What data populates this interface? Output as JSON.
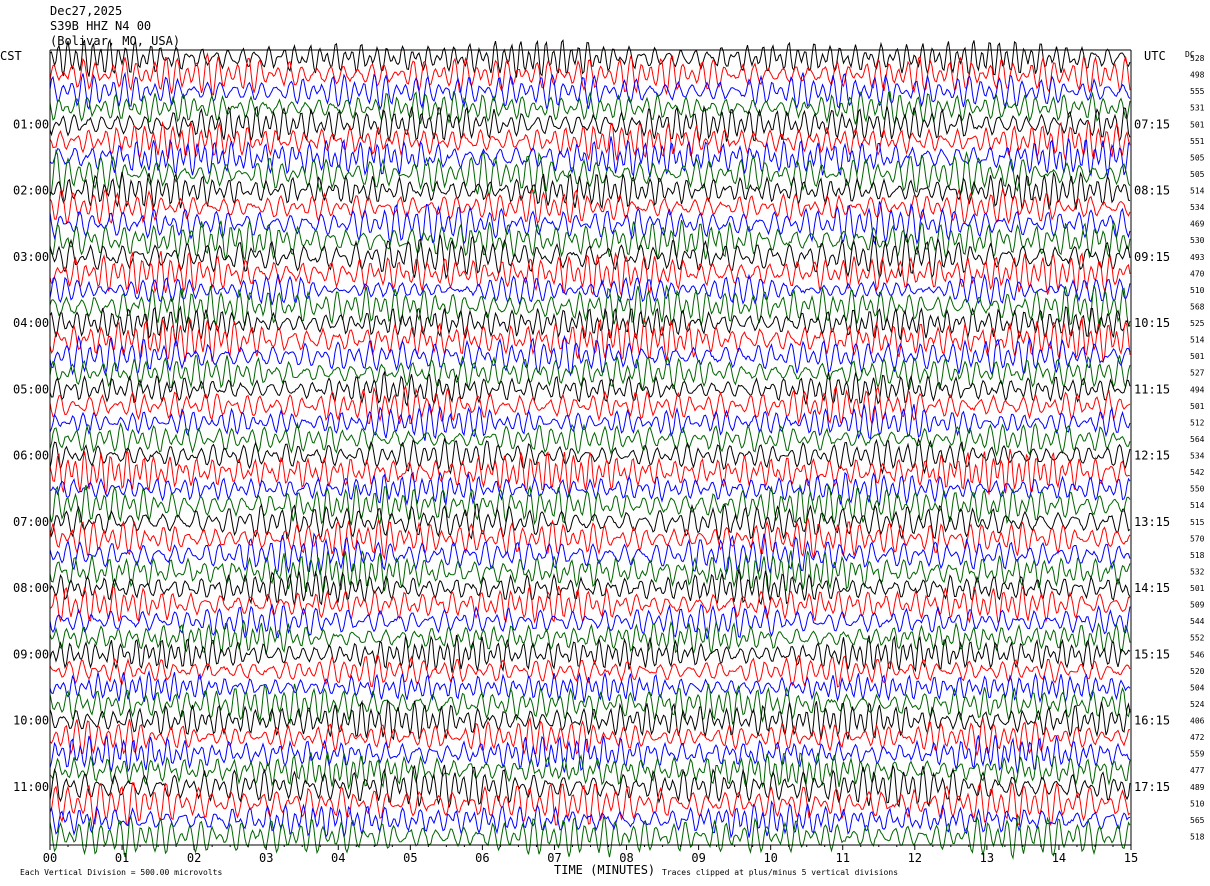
{
  "header": {
    "date": "Dec27,2025",
    "station": "S39B HHZ N4 00",
    "location": "(Bolivar, MO, USA)"
  },
  "axis_labels": {
    "left_timezone": "CST",
    "right_timezone": "UTC",
    "dc_label": "DC",
    "x_title": "TIME (MINUTES)"
  },
  "footer": {
    "scale_note": "Each Vertical Division =  500.00 microvolts",
    "clip_note": "Traces clipped at plus/minus 5 vertical divisions"
  },
  "colors": {
    "trace_cycle": [
      "#000000",
      "#ff0000",
      "#0000ff",
      "#006400"
    ]
  },
  "chart_data": {
    "type": "line",
    "title": "Dec27,2025 S39B HHZ N4 00 (Bolivar, MO, USA)",
    "xlabel": "TIME (MINUTES)",
    "xlim": [
      0,
      15
    ],
    "x_ticks": [
      "00",
      "01",
      "02",
      "03",
      "04",
      "05",
      "06",
      "07",
      "08",
      "09",
      "10",
      "11",
      "12",
      "13",
      "14",
      "15"
    ],
    "left_time_labels": [
      "01:00",
      "02:00",
      "03:00",
      "04:00",
      "05:00",
      "06:00",
      "07:00",
      "08:00",
      "09:00",
      "10:00",
      "11:00"
    ],
    "right_time_labels": [
      "07:15",
      "08:15",
      "09:15",
      "10:15",
      "11:15",
      "12:15",
      "13:15",
      "14:15",
      "15:15",
      "16:15",
      "17:15"
    ],
    "traces_per_hour": 4,
    "trace_count": 48,
    "dc_offsets": [
      528,
      498,
      555,
      531,
      501,
      551,
      505,
      505,
      514,
      534,
      469,
      530,
      493,
      470,
      510,
      568,
      525,
      514,
      501,
      527,
      494,
      501,
      512,
      564,
      534,
      542,
      550,
      514,
      515,
      570,
      518,
      532,
      501,
      509,
      544,
      552,
      546,
      520,
      504,
      524,
      406,
      472,
      559,
      477,
      489,
      510,
      565,
      518
    ],
    "units": "microvolts",
    "vertical_division_uV": 500.0,
    "clip_divisions": 5
  }
}
